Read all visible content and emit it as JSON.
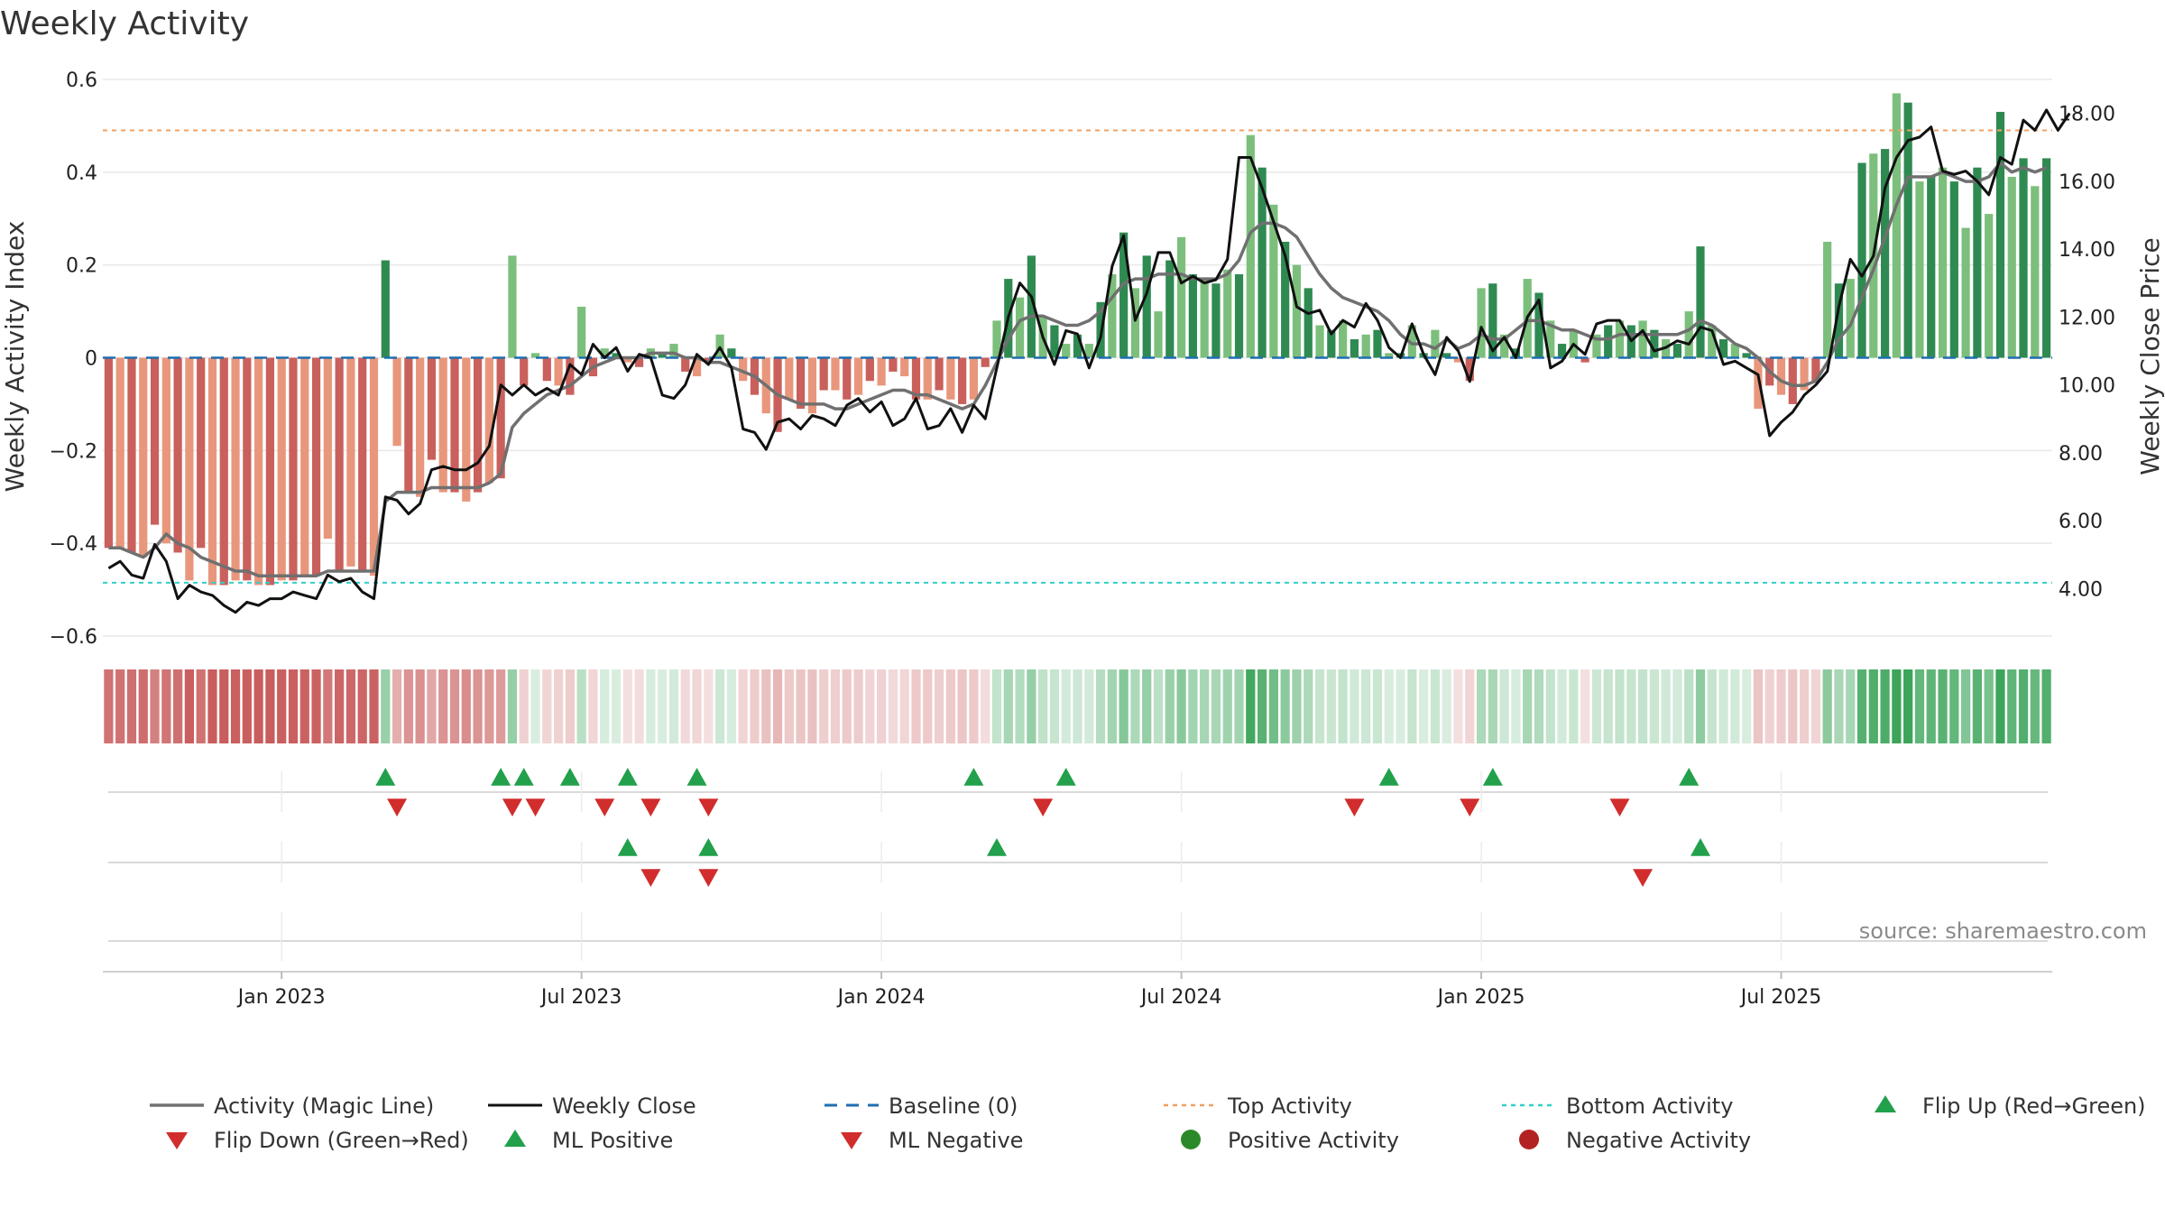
{
  "chart_data": {
    "type": "bar",
    "title": "Weekly Activity",
    "ylabel": "Weekly Activity Index",
    "y2label": "Weekly Close Price",
    "ylim": [
      -0.6,
      0.6
    ],
    "y2lim": [
      2.6,
      19.0
    ],
    "yticks": [
      {
        "v": 0.6,
        "label": "0.6"
      },
      {
        "v": 0.4,
        "label": "0.4"
      },
      {
        "v": 0.2,
        "label": "0.2"
      },
      {
        "v": 0,
        "label": "0"
      },
      {
        "v": -0.2,
        "label": "−0.2"
      },
      {
        "v": -0.4,
        "label": "−0.4"
      },
      {
        "v": -0.6,
        "label": "−0.6"
      }
    ],
    "y2ticks": [
      {
        "v": 18,
        "label": "18.00"
      },
      {
        "v": 16,
        "label": "16.00"
      },
      {
        "v": 14,
        "label": "14.00"
      },
      {
        "v": 12,
        "label": "12.00"
      },
      {
        "v": 10,
        "label": "10.00"
      },
      {
        "v": 8,
        "label": "8.00"
      },
      {
        "v": 6,
        "label": "6.00"
      },
      {
        "v": 4,
        "label": "4.00"
      }
    ],
    "xticks": [
      {
        "week": 15,
        "label": "Jan 2023"
      },
      {
        "week": 41,
        "label": "Jul 2023"
      },
      {
        "week": 67,
        "label": "Jan 2024"
      },
      {
        "week": 93,
        "label": "Jul 2024"
      },
      {
        "week": 119,
        "label": "Jan 2025"
      },
      {
        "week": 145,
        "label": "Jul 2025"
      }
    ],
    "top_activity": 0.49,
    "bottom_activity": -0.485,
    "source": "source: sharemaestro.com",
    "colors": {
      "neg_dark": "#c9605c",
      "neg_light": "#e8977c",
      "pos_dark": "#2f8a52",
      "pos_light": "#7cbf7c",
      "magic": "#707070",
      "close": "#111111",
      "baseline": "#1f6fb0",
      "top": "#f0a060",
      "bottom": "#30d0c8",
      "marker_up": "#22a04b",
      "marker_down": "#d12d2d",
      "pos_dot": "#2a8a2a",
      "neg_dot": "#b22222"
    },
    "activity": [
      -0.41,
      -0.41,
      -0.42,
      -0.43,
      -0.36,
      -0.4,
      -0.42,
      -0.48,
      -0.41,
      -0.49,
      -0.49,
      -0.48,
      -0.48,
      -0.49,
      -0.49,
      -0.48,
      -0.48,
      -0.47,
      -0.47,
      -0.39,
      -0.46,
      -0.45,
      -0.46,
      -0.47,
      0.21,
      -0.19,
      -0.29,
      -0.3,
      -0.22,
      -0.29,
      -0.29,
      -0.31,
      -0.29,
      -0.27,
      -0.26,
      0.22,
      -0.06,
      0.01,
      -0.05,
      -0.06,
      -0.08,
      0.11,
      -0.04,
      0.02,
      0.01,
      -0.01,
      -0.02,
      0.02,
      0.01,
      0.03,
      -0.03,
      -0.04,
      -0.01,
      0.05,
      0.02,
      -0.05,
      -0.08,
      -0.12,
      -0.16,
      -0.09,
      -0.11,
      -0.12,
      -0.07,
      -0.07,
      -0.09,
      -0.08,
      -0.05,
      -0.06,
      -0.03,
      -0.04,
      -0.09,
      -0.09,
      -0.07,
      -0.09,
      -0.1,
      -0.09,
      -0.02,
      0.08,
      0.17,
      0.13,
      0.22,
      0.09,
      0.07,
      0.03,
      0.05,
      0.03,
      0.12,
      0.18,
      0.27,
      0.15,
      0.22,
      0.1,
      0.21,
      0.26,
      0.18,
      0.17,
      0.16,
      0.19,
      0.18,
      0.48,
      0.41,
      0.33,
      0.25,
      0.2,
      0.15,
      0.07,
      0.06,
      0.08,
      0.04,
      0.05,
      0.06,
      0.01,
      0.01,
      0.07,
      0.01,
      0.06,
      0.01,
      -0.01,
      -0.05,
      0.15,
      0.16,
      0.05,
      0.02,
      0.17,
      0.14,
      0.08,
      0.03,
      0.06,
      -0.01,
      0.05,
      0.07,
      0.08,
      0.07,
      0.08,
      0.06,
      0.04,
      0.03,
      0.1,
      0.24,
      0.07,
      0.04,
      0.03,
      0.01,
      -0.11,
      -0.06,
      -0.08,
      -0.1,
      -0.07,
      -0.05,
      0.25,
      0.16,
      0.17,
      0.42,
      0.44,
      0.45,
      0.57,
      0.55,
      0.38,
      0.39,
      0.41,
      0.38,
      0.28,
      0.41,
      0.31,
      0.53,
      0.39,
      0.43,
      0.37,
      0.43
    ],
    "magic_line": [
      -0.41,
      -0.41,
      -0.42,
      -0.43,
      -0.41,
      -0.38,
      -0.4,
      -0.41,
      -0.43,
      -0.44,
      -0.45,
      -0.46,
      -0.46,
      -0.47,
      -0.47,
      -0.47,
      -0.47,
      -0.47,
      -0.47,
      -0.46,
      -0.46,
      -0.46,
      -0.46,
      -0.46,
      -0.31,
      -0.29,
      -0.29,
      -0.29,
      -0.28,
      -0.28,
      -0.28,
      -0.28,
      -0.28,
      -0.27,
      -0.25,
      -0.15,
      -0.12,
      -0.1,
      -0.08,
      -0.07,
      -0.06,
      -0.04,
      -0.02,
      -0.01,
      0.0,
      0.0,
      0.0,
      0.01,
      0.01,
      0.01,
      0.0,
      0.0,
      -0.01,
      -0.01,
      -0.02,
      -0.03,
      -0.04,
      -0.06,
      -0.08,
      -0.09,
      -0.1,
      -0.1,
      -0.1,
      -0.11,
      -0.11,
      -0.1,
      -0.09,
      -0.08,
      -0.07,
      -0.07,
      -0.08,
      -0.08,
      -0.09,
      -0.1,
      -0.11,
      -0.1,
      -0.06,
      -0.01,
      0.04,
      0.08,
      0.09,
      0.09,
      0.08,
      0.07,
      0.07,
      0.08,
      0.1,
      0.13,
      0.16,
      0.17,
      0.17,
      0.18,
      0.18,
      0.18,
      0.17,
      0.17,
      0.17,
      0.18,
      0.21,
      0.27,
      0.29,
      0.29,
      0.28,
      0.26,
      0.22,
      0.18,
      0.15,
      0.13,
      0.12,
      0.11,
      0.1,
      0.08,
      0.05,
      0.03,
      0.03,
      0.02,
      0.04,
      0.02,
      0.03,
      0.05,
      0.04,
      0.04,
      0.06,
      0.08,
      0.08,
      0.07,
      0.06,
      0.06,
      0.05,
      0.04,
      0.04,
      0.05,
      0.05,
      0.05,
      0.05,
      0.05,
      0.05,
      0.06,
      0.08,
      0.07,
      0.05,
      0.03,
      0.02,
      0.0,
      -0.03,
      -0.05,
      -0.06,
      -0.06,
      -0.05,
      -0.01,
      0.04,
      0.07,
      0.13,
      0.19,
      0.26,
      0.33,
      0.39,
      0.39,
      0.39,
      0.4,
      0.39,
      0.38,
      0.38,
      0.39,
      0.42,
      0.4,
      0.41,
      0.4,
      0.41
    ],
    "close": [
      4.6,
      4.8,
      4.4,
      4.3,
      5.3,
      4.8,
      3.7,
      4.1,
      3.9,
      3.8,
      3.5,
      3.3,
      3.6,
      3.5,
      3.7,
      3.7,
      3.9,
      3.8,
      3.7,
      4.4,
      4.2,
      4.3,
      3.9,
      3.7,
      6.7,
      6.6,
      6.2,
      6.5,
      7.5,
      7.6,
      7.5,
      7.5,
      7.7,
      8.2,
      10.0,
      9.7,
      10.0,
      9.7,
      9.9,
      9.7,
      10.6,
      10.3,
      11.2,
      10.8,
      11.1,
      10.4,
      10.9,
      10.8,
      9.7,
      9.6,
      10.0,
      10.9,
      10.6,
      11.1,
      10.5,
      8.7,
      8.6,
      8.1,
      8.9,
      9.0,
      8.7,
      9.1,
      9.0,
      8.8,
      9.4,
      9.6,
      9.2,
      9.5,
      8.8,
      9.0,
      9.6,
      8.7,
      8.8,
      9.3,
      8.6,
      9.4,
      9.0,
      10.5,
      12.0,
      13.0,
      12.6,
      11.4,
      10.6,
      11.6,
      11.5,
      10.5,
      11.4,
      13.5,
      14.4,
      11.9,
      12.7,
      13.9,
      13.9,
      13.0,
      13.2,
      13.0,
      13.1,
      13.7,
      16.7,
      16.7,
      15.8,
      14.8,
      13.8,
      12.3,
      12.1,
      12.2,
      11.5,
      11.9,
      11.7,
      12.4,
      11.9,
      11.1,
      10.8,
      11.8,
      10.9,
      10.3,
      11.4,
      11.0,
      10.1,
      11.7,
      11.0,
      11.4,
      10.8,
      12.0,
      12.5,
      10.5,
      10.7,
      11.2,
      10.9,
      11.8,
      11.9,
      11.9,
      11.3,
      11.6,
      11.0,
      11.1,
      11.3,
      11.2,
      11.7,
      11.6,
      10.6,
      10.7,
      10.5,
      10.3,
      8.5,
      8.9,
      9.2,
      9.7,
      10.0,
      10.4,
      12.3,
      13.7,
      13.2,
      13.8,
      15.8,
      16.7,
      17.2,
      17.3,
      17.6,
      16.3,
      16.2,
      16.3,
      16.0,
      15.6,
      16.7,
      16.5,
      17.8,
      17.5,
      18.1,
      17.5,
      18.0
    ],
    "flip_up": [
      24,
      34,
      36,
      40,
      45,
      51,
      75,
      83,
      111,
      120,
      137
    ],
    "flip_down": [
      25,
      35,
      37,
      43,
      47,
      52,
      81,
      108,
      118,
      131
    ],
    "ml_positive": [
      45,
      52,
      77,
      138
    ],
    "ml_negative": [
      47,
      52,
      133
    ],
    "legend": [
      {
        "label": "Activity (Magic Line)",
        "symbol": "line-gray"
      },
      {
        "label": "Weekly Close",
        "symbol": "line-black"
      },
      {
        "label": "Baseline (0)",
        "symbol": "dash-blue"
      },
      {
        "label": "Top Activity",
        "symbol": "dot-orange"
      },
      {
        "label": "Bottom Activity",
        "symbol": "dot-cyan"
      },
      {
        "label": "Flip Up (Red→Green)",
        "symbol": "tri-up-green"
      },
      {
        "label": "Flip Down (Green→Red)",
        "symbol": "tri-down-red"
      },
      {
        "label": "ML Positive",
        "symbol": "tri-up-green"
      },
      {
        "label": "ML Negative",
        "symbol": "tri-down-red"
      },
      {
        "label": "Positive Activity",
        "symbol": "dot-green"
      },
      {
        "label": "Negative Activity",
        "symbol": "dot-red"
      }
    ]
  }
}
